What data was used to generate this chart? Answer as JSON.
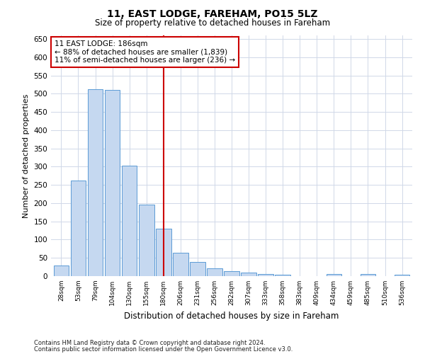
{
  "title": "11, EAST LODGE, FAREHAM, PO15 5LZ",
  "subtitle": "Size of property relative to detached houses in Fareham",
  "xlabel": "Distribution of detached houses by size in Fareham",
  "ylabel": "Number of detached properties",
  "categories": [
    "28sqm",
    "53sqm",
    "79sqm",
    "104sqm",
    "130sqm",
    "155sqm",
    "180sqm",
    "206sqm",
    "231sqm",
    "256sqm",
    "282sqm",
    "307sqm",
    "333sqm",
    "358sqm",
    "383sqm",
    "409sqm",
    "434sqm",
    "459sqm",
    "485sqm",
    "510sqm",
    "536sqm"
  ],
  "values": [
    30,
    262,
    512,
    510,
    302,
    196,
    130,
    65,
    38,
    21,
    14,
    9,
    5,
    4,
    0,
    0,
    5,
    0,
    5,
    0,
    4
  ],
  "bar_color": "#c5d8f0",
  "bar_edge_color": "#5b9bd5",
  "property_line_index": 6,
  "property_line_color": "#cc0000",
  "annotation_line1": "11 EAST LODGE: 186sqm",
  "annotation_line2": "← 88% of detached houses are smaller (1,839)",
  "annotation_line3": "11% of semi-detached houses are larger (236) →",
  "annotation_box_color": "#cc0000",
  "ylim": [
    0,
    660
  ],
  "yticks": [
    0,
    50,
    100,
    150,
    200,
    250,
    300,
    350,
    400,
    450,
    500,
    550,
    600,
    650
  ],
  "footnote_line1": "Contains HM Land Registry data © Crown copyright and database right 2024.",
  "footnote_line2": "Contains public sector information licensed under the Open Government Licence v3.0.",
  "background_color": "#ffffff",
  "grid_color": "#d0d8e8"
}
